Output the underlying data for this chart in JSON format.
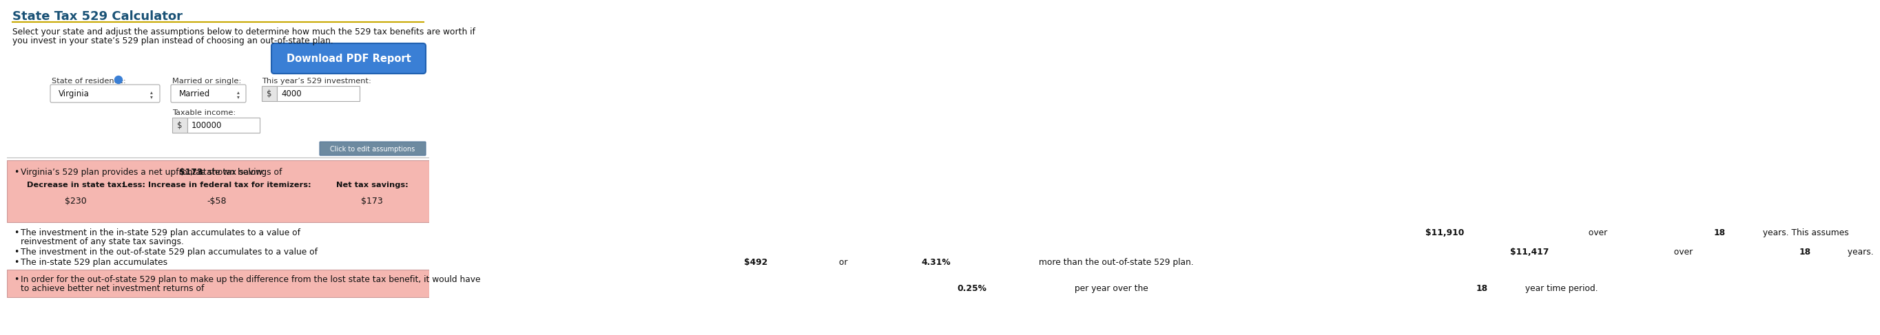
{
  "title": "State Tax 529 Calculator",
  "title_color": "#1a5276",
  "title_underline_color": "#c8a800",
  "bg_color": "#ffffff",
  "subtitle_line1": "Select your state and adjust the assumptions below to determine how much the 529 tax benefits are worth if",
  "subtitle_line2": "you invest in your state’s 529 plan instead of choosing an out-of-state plan.",
  "button_text": "Download PDF Report",
  "button_color": "#3a7fd5",
  "button_text_color": "#ffffff",
  "label_state": "State of residence:",
  "label_married": "Married or single:",
  "label_investment": "This year’s 529 investment:",
  "label_income": "Taxable income:",
  "field_state": "Virginia",
  "field_married": "Married",
  "field_investment": "4000",
  "field_income": "100000",
  "click_button_text": "Click to edit assumptions",
  "click_button_color": "#6d8aa0",
  "pink_bg": "#f5b7b1",
  "pink_bg2": "#f5b7b1",
  "col1_header": "Decrease in state tax:",
  "col2_header": "Less: Increase in federal tax for itemizers:",
  "col3_header": "Net tax savings:",
  "col1_val": "$230",
  "col2_val": "-$58",
  "col3_val": "$173",
  "separator_color": "#bbbbbb",
  "border_color": "#cc9999"
}
